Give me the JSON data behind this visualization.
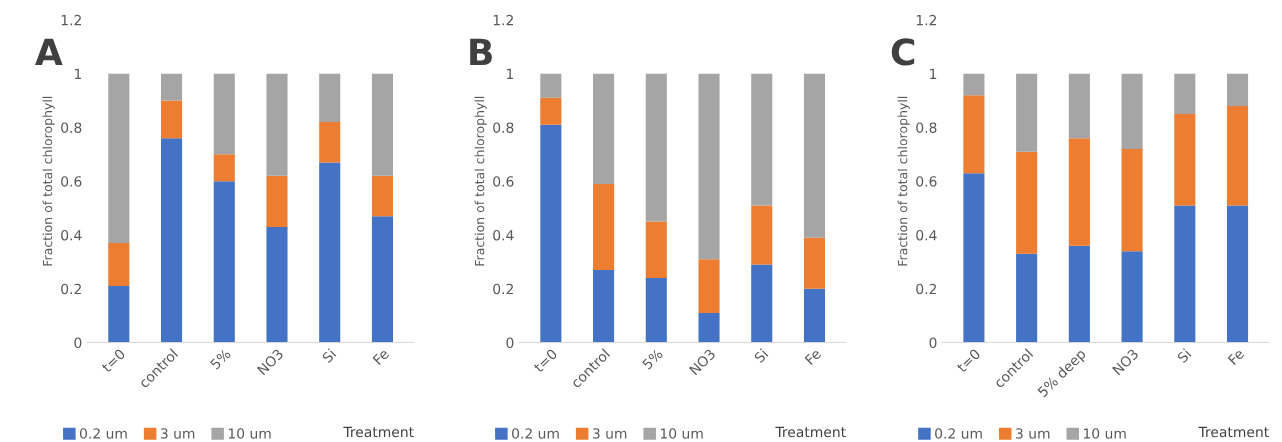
{
  "chart_data": [
    {
      "type": "bar",
      "title": "A",
      "stacked": true,
      "ylabel": "Fraction of total chlorophyll",
      "xlabel": "Treatment",
      "categories": [
        "t=0",
        "control",
        "5%",
        "NO3",
        "Si",
        "Fe"
      ],
      "ylim": [
        0,
        1.2
      ],
      "yticks": [
        0,
        0.2,
        0.4,
        0.6,
        0.8,
        1,
        1.2
      ],
      "legend": "bottom",
      "grid": false,
      "series": [
        {
          "name": "0.2 um",
          "color": "#4472c4",
          "values": [
            0.21,
            0.76,
            0.6,
            0.43,
            0.67,
            0.47
          ]
        },
        {
          "name": "3 um",
          "color": "#ed7d31",
          "values": [
            0.16,
            0.14,
            0.1,
            0.19,
            0.15,
            0.15
          ]
        },
        {
          "name": "10 um",
          "color": "#a5a5a5",
          "values": [
            0.63,
            0.1,
            0.3,
            0.38,
            0.18,
            0.38
          ]
        }
      ]
    },
    {
      "type": "bar",
      "title": "B",
      "stacked": true,
      "ylabel": "Fraction of total chlorophyll",
      "xlabel": "Treatment",
      "categories": [
        "t=0",
        "control",
        "5%",
        "NO3",
        "Si",
        "Fe"
      ],
      "ylim": [
        0,
        1.2
      ],
      "yticks": [
        0,
        0.2,
        0.4,
        0.6,
        0.8,
        1,
        1.2
      ],
      "legend": "bottom",
      "grid": false,
      "series": [
        {
          "name": "0.2 um",
          "color": "#4472c4",
          "values": [
            0.81,
            0.27,
            0.24,
            0.11,
            0.29,
            0.2
          ]
        },
        {
          "name": "3 um",
          "color": "#ed7d31",
          "values": [
            0.1,
            0.32,
            0.21,
            0.2,
            0.22,
            0.19
          ]
        },
        {
          "name": "10 um",
          "color": "#a5a5a5",
          "values": [
            0.09,
            0.41,
            0.55,
            0.69,
            0.49,
            0.61
          ]
        }
      ]
    },
    {
      "type": "bar",
      "title": "C",
      "stacked": true,
      "ylabel": "Fraction of total chlorophyll",
      "xlabel": "Treatment",
      "categories": [
        "t=0",
        "control",
        "5% deep",
        "NO3",
        "Si",
        "Fe"
      ],
      "ylim": [
        0,
        1.2
      ],
      "yticks": [
        0,
        0.2,
        0.4,
        0.6,
        0.8,
        1,
        1.2
      ],
      "legend": "bottom",
      "grid": false,
      "series": [
        {
          "name": "0.2 um",
          "color": "#4472c4",
          "values": [
            0.63,
            0.33,
            0.36,
            0.34,
            0.51,
            0.51
          ]
        },
        {
          "name": "3 um",
          "color": "#ed7d31",
          "values": [
            0.29,
            0.38,
            0.4,
            0.38,
            0.34,
            0.37
          ]
        },
        {
          "name": "10 um",
          "color": "#a5a5a5",
          "values": [
            0.08,
            0.29,
            0.24,
            0.28,
            0.15,
            0.12
          ]
        }
      ]
    }
  ]
}
